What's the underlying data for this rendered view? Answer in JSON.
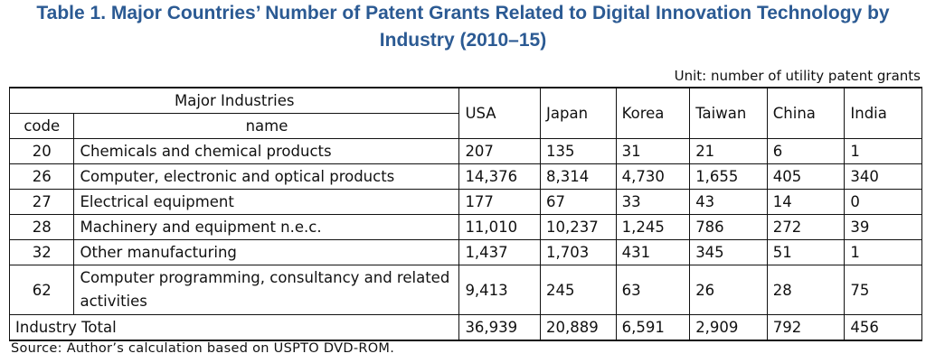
{
  "title": {
    "line1": "Table 1. Major Countries’ Number of Patent Grants Related to Digital Innovation Technology by",
    "line2": "Industry (2010–15)"
  },
  "unit": "Unit: number of utility patent grants",
  "header": {
    "group": "Major Industries",
    "code": "code",
    "name": "name",
    "countries": [
      "USA",
      "Japan",
      "Korea",
      "Taiwan",
      "China",
      "India"
    ]
  },
  "rows": [
    {
      "code": "20",
      "name": "Chemicals and chemical products",
      "values": [
        "207",
        "135",
        "31",
        "21",
        "6",
        "1"
      ]
    },
    {
      "code": "26",
      "name": "Computer, electronic and optical products",
      "values": [
        "14,376",
        "8,314",
        "4,730",
        "1,655",
        "405",
        "340"
      ]
    },
    {
      "code": "27",
      "name": "Electrical equipment",
      "values": [
        "177",
        "67",
        "33",
        "43",
        "14",
        "0"
      ]
    },
    {
      "code": "28",
      "name": "Machinery and equipment n.e.c.",
      "values": [
        "11,010",
        "10,237",
        "1,245",
        "786",
        "272",
        "39"
      ]
    },
    {
      "code": "32",
      "name": "Other manufacturing",
      "values": [
        "1,437",
        "1,703",
        "431",
        "345",
        "51",
        "1"
      ]
    },
    {
      "code": "62",
      "name": "Computer programming, consultancy and related activities",
      "values": [
        "9,413",
        "245",
        "63",
        "26",
        "28",
        "75"
      ]
    }
  ],
  "total": {
    "label": "Industry Total",
    "values": [
      "36,939",
      "20,889",
      "6,591",
      "2,909",
      "792",
      "456"
    ]
  },
  "source": "Source: Author’s calculation based on USPTO DVD-ROM."
}
